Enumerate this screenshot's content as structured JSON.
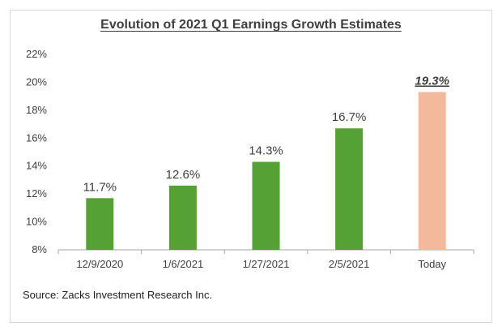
{
  "colors": {
    "bar_green": "#55a135",
    "bar_highlight": "#f4b89b",
    "axis": "#a6a6a6",
    "text": "#3f3f3f"
  },
  "chart_data": {
    "type": "bar",
    "title": "Evolution of 2021 Q1 Earnings Growth Estimates",
    "categories": [
      "12/9/2020",
      "1/6/2021",
      "1/27/2021",
      "2/5/2021",
      "Today"
    ],
    "values": [
      11.7,
      12.6,
      14.3,
      16.7,
      19.3
    ],
    "value_labels": [
      "11.7%",
      "12.6%",
      "14.3%",
      "16.7%",
      "19.3%"
    ],
    "highlight_index": 4,
    "ylim": [
      8,
      22
    ],
    "yticks": [
      8,
      10,
      12,
      14,
      16,
      18,
      20,
      22
    ],
    "ytick_labels": [
      "8%",
      "10%",
      "12%",
      "14%",
      "16%",
      "18%",
      "20%",
      "22%"
    ],
    "grid": false,
    "legend": "none",
    "xlabel": "",
    "ylabel": ""
  },
  "source": "Source: Zacks Investment Research Inc."
}
